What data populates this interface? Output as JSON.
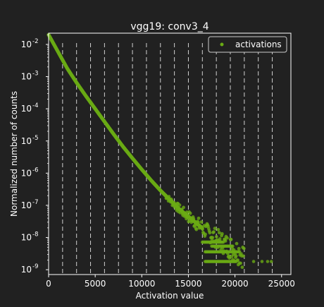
{
  "chart_data": {
    "type": "scatter",
    "title": "vgg19: conv3_4",
    "xlabel": "Activation value",
    "ylabel": "Normalized number of counts",
    "xlim": [
      0,
      26000
    ],
    "ylim_log10": [
      -9.15,
      -1.65
    ],
    "y_scale": "log",
    "grid": false,
    "legend_position": "top-right",
    "x_ticks": [
      0,
      5000,
      10000,
      15000,
      20000,
      25000
    ],
    "x_tick_labels": [
      "0",
      "5000",
      "10000",
      "15000",
      "20000",
      "25000"
    ],
    "y_ticks_log10": [
      -2,
      -3,
      -4,
      -5,
      -6,
      -7,
      -8,
      -9
    ],
    "y_tick_labels": [
      "10",
      "10",
      "10",
      "10",
      "10",
      "10",
      "10",
      "10"
    ],
    "y_tick_exponents": [
      "-2",
      "-3",
      "-4",
      "-5",
      "-6",
      "-7",
      "-8",
      "-9"
    ],
    "vertical_dashed_lines_x": [
      1500,
      3000,
      4500,
      6000,
      7500,
      9000,
      10500,
      12000,
      13500,
      15000,
      16500,
      18000,
      19500,
      21000,
      22500,
      24000
    ],
    "series": [
      {
        "name": "activations",
        "color": "#6aaa14",
        "x": [
          0,
          1000,
          2000,
          3000,
          4000,
          5000,
          6000,
          7000,
          8000,
          9000,
          10000,
          11000,
          12000,
          13000,
          14000,
          15000,
          16000,
          17000,
          17500,
          18000,
          18500,
          19000,
          19500,
          20000,
          20500,
          21000,
          22000,
          23000,
          23800
        ],
        "y": [
          0.02,
          0.006,
          0.0018,
          0.00065,
          0.00025,
          0.0001,
          4e-05,
          1.6e-05,
          6.6e-06,
          2.9e-06,
          1.3e-06,
          6e-07,
          2.9e-07,
          1.5e-07,
          7.8e-08,
          4.5e-08,
          2.6e-08,
          1.5e-08,
          1.2e-08,
          9.5e-09,
          7.5e-09,
          6e-09,
          5e-09,
          4e-09,
          3.5e-09,
          2.8e-09,
          1.8e-09,
          1.8e-09,
          1.8e-09
        ]
      }
    ]
  }
}
